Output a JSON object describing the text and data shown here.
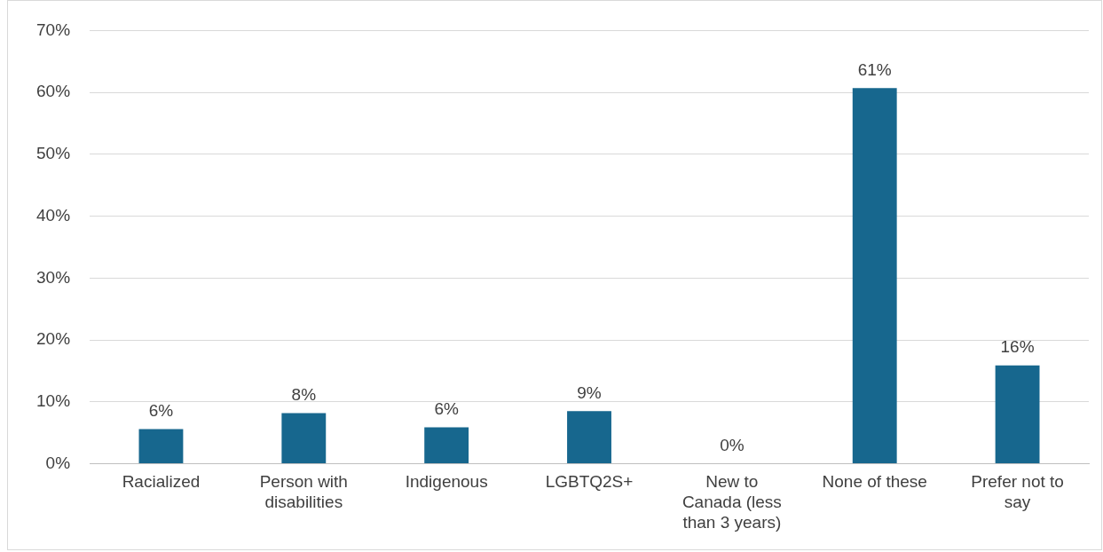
{
  "chart_data": {
    "type": "bar",
    "categories": [
      "Racialized",
      "Person with disabilities",
      "Indigenous",
      "LGBTQ2S+",
      "New to Canada (less than 3 years)",
      "None of these",
      "Prefer not to say"
    ],
    "values": [
      5.6,
      8.2,
      5.9,
      8.5,
      0,
      60.7,
      15.9
    ],
    "value_labels": [
      "6%",
      "8%",
      "6%",
      "9%",
      "0%",
      "61%",
      "16%"
    ],
    "color": "#17678e",
    "ylim": [
      0,
      70
    ],
    "yticks": [
      {
        "value": 0,
        "label": "0%"
      },
      {
        "value": 10,
        "label": "10%"
      },
      {
        "value": 20,
        "label": "20%"
      },
      {
        "value": 30,
        "label": "30%"
      },
      {
        "value": 40,
        "label": "40%"
      },
      {
        "value": 50,
        "label": "50%"
      },
      {
        "value": 60,
        "label": "60%"
      },
      {
        "value": 70,
        "label": "70%"
      }
    ],
    "grid": "y",
    "legend": false
  }
}
